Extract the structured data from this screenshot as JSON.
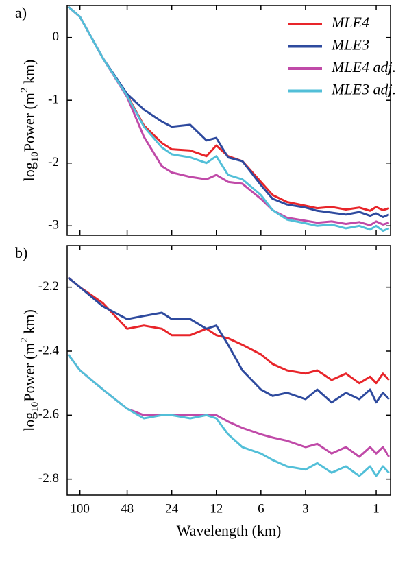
{
  "chart_data": [
    {
      "type": "line",
      "panel_label": "a)",
      "ylabel": [
        "log",
        "10",
        "Power (m",
        "2",
        " km)"
      ],
      "x": [
        120,
        100,
        70,
        48,
        37,
        28,
        24,
        18,
        14,
        12,
        10,
        8,
        6,
        5,
        4,
        3,
        2.5,
        2,
        1.6,
        1.3,
        1.1,
        1,
        0.9,
        0.82
      ],
      "xscale": "log",
      "xlim": [
        122,
        0.8
      ],
      "xticks": [
        100,
        48,
        24,
        12,
        6,
        3,
        1
      ],
      "xtick_labels": false,
      "ylim": [
        -3.15,
        0.51
      ],
      "yticks": [
        0,
        -1,
        -2,
        -3
      ],
      "legend": "upper right",
      "series": [
        {
          "name": "MLE4",
          "color": "#e8252a",
          "values": [
            0.49,
            0.33,
            -0.33,
            -0.92,
            -1.4,
            -1.68,
            -1.78,
            -1.8,
            -1.89,
            -1.72,
            -1.89,
            -1.97,
            -2.3,
            -2.51,
            -2.62,
            -2.68,
            -2.72,
            -2.7,
            -2.74,
            -2.71,
            -2.76,
            -2.7,
            -2.75,
            -2.72
          ]
        },
        {
          "name": "MLE3",
          "color": "#2e4a9e",
          "values": [
            0.49,
            0.33,
            -0.33,
            -0.9,
            -1.15,
            -1.34,
            -1.42,
            -1.39,
            -1.64,
            -1.6,
            -1.91,
            -1.97,
            -2.35,
            -2.57,
            -2.66,
            -2.71,
            -2.76,
            -2.79,
            -2.82,
            -2.78,
            -2.84,
            -2.8,
            -2.86,
            -2.82
          ]
        },
        {
          "name": "MLE4 adj.",
          "color": "#c04aa8",
          "values": [
            0.49,
            0.33,
            -0.33,
            -0.95,
            -1.58,
            -2.05,
            -2.15,
            -2.22,
            -2.26,
            -2.19,
            -2.3,
            -2.33,
            -2.57,
            -2.75,
            -2.87,
            -2.92,
            -2.95,
            -2.93,
            -2.97,
            -2.94,
            -2.99,
            -2.93,
            -2.98,
            -2.95
          ]
        },
        {
          "name": "MLE3 adj.",
          "color": "#52bfd8",
          "values": [
            0.49,
            0.33,
            -0.33,
            -0.93,
            -1.42,
            -1.75,
            -1.86,
            -1.91,
            -2.0,
            -1.89,
            -2.19,
            -2.26,
            -2.51,
            -2.75,
            -2.9,
            -2.96,
            -3.0,
            -2.98,
            -3.04,
            -3.0,
            -3.06,
            -3.0,
            -3.08,
            -3.04
          ]
        }
      ]
    },
    {
      "type": "line",
      "panel_label": "b)",
      "ylabel": [
        "log",
        "10",
        "Power (m",
        "2",
        " km)"
      ],
      "xlabel": "Wavelength (km)",
      "x": [
        120,
        100,
        70,
        48,
        37,
        28,
        24,
        18,
        14,
        12,
        10,
        8,
        6,
        5,
        4,
        3,
        2.5,
        2,
        1.6,
        1.3,
        1.1,
        1,
        0.9,
        0.82
      ],
      "xscale": "log",
      "xlim": [
        122,
        0.8
      ],
      "xticks": [
        100,
        48,
        24,
        12,
        6,
        3,
        1
      ],
      "xtick_labels": true,
      "ylim": [
        -2.85,
        -2.07
      ],
      "yticks": [
        -2.2,
        -2.4,
        -2.6,
        -2.8
      ],
      "series": [
        {
          "color": "#e8252a",
          "values": [
            -2.17,
            -2.2,
            -2.25,
            -2.33,
            -2.32,
            -2.33,
            -2.35,
            -2.35,
            -2.33,
            -2.35,
            -2.36,
            -2.38,
            -2.41,
            -2.44,
            -2.46,
            -2.47,
            -2.46,
            -2.49,
            -2.47,
            -2.5,
            -2.48,
            -2.5,
            -2.47,
            -2.49
          ]
        },
        {
          "color": "#2e4a9e",
          "values": [
            -2.17,
            -2.2,
            -2.26,
            -2.3,
            -2.29,
            -2.28,
            -2.3,
            -2.3,
            -2.33,
            -2.32,
            -2.38,
            -2.46,
            -2.52,
            -2.54,
            -2.53,
            -2.55,
            -2.52,
            -2.56,
            -2.53,
            -2.55,
            -2.52,
            -2.56,
            -2.53,
            -2.55
          ]
        },
        {
          "color": "#c04aa8",
          "values": [
            -2.41,
            -2.46,
            -2.52,
            -2.58,
            -2.6,
            -2.6,
            -2.6,
            -2.6,
            -2.6,
            -2.6,
            -2.62,
            -2.64,
            -2.66,
            -2.67,
            -2.68,
            -2.7,
            -2.69,
            -2.72,
            -2.7,
            -2.73,
            -2.7,
            -2.72,
            -2.7,
            -2.73
          ]
        },
        {
          "color": "#52bfd8",
          "values": [
            -2.41,
            -2.46,
            -2.52,
            -2.58,
            -2.61,
            -2.6,
            -2.6,
            -2.61,
            -2.6,
            -2.61,
            -2.66,
            -2.7,
            -2.72,
            -2.74,
            -2.76,
            -2.77,
            -2.75,
            -2.78,
            -2.76,
            -2.79,
            -2.76,
            -2.79,
            -2.76,
            -2.78
          ]
        }
      ]
    }
  ]
}
